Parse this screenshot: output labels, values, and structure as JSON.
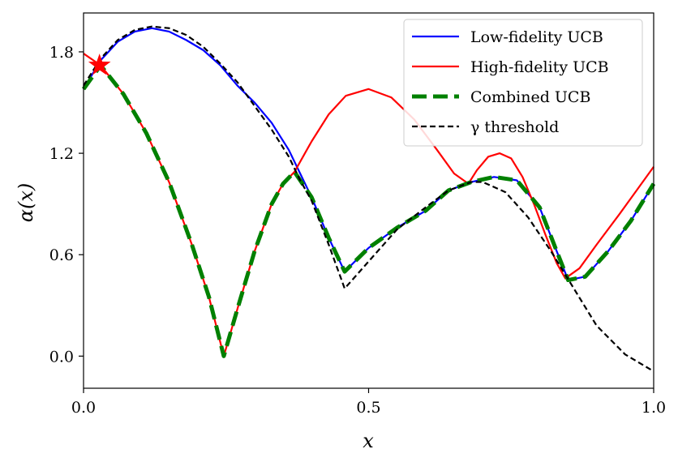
{
  "chart_data": {
    "type": "line",
    "title": "",
    "xlabel": "x",
    "ylabel": "α(x)",
    "xlim": [
      0.0,
      1.0
    ],
    "ylim": [
      -0.19,
      2.03
    ],
    "xticks": [
      0.0,
      0.5,
      1.0
    ],
    "xtick_labels": [
      "0.0",
      "0.5",
      "1.0"
    ],
    "yticks": [
      0.0,
      0.6,
      1.2,
      1.8
    ],
    "ytick_labels": [
      "0.0",
      "0.6",
      "1.2",
      "1.8"
    ],
    "grid": false,
    "legend_position": "top-right",
    "series": [
      {
        "name": "Low-fidelity UCB",
        "color": "#0000ff",
        "style": "solid",
        "x": [
          0.0,
          0.03,
          0.06,
          0.09,
          0.12,
          0.15,
          0.18,
          0.21,
          0.24,
          0.27,
          0.3,
          0.33,
          0.36,
          0.38,
          0.4,
          0.43,
          0.458,
          0.5,
          0.55,
          0.6,
          0.64,
          0.68,
          0.72,
          0.76,
          0.8,
          0.83,
          0.85,
          0.88,
          0.92,
          0.96,
          1.0
        ],
        "y": [
          1.58,
          1.75,
          1.86,
          1.92,
          1.94,
          1.92,
          1.87,
          1.81,
          1.72,
          1.6,
          1.5,
          1.38,
          1.22,
          1.08,
          0.94,
          0.7,
          0.5,
          0.64,
          0.76,
          0.86,
          0.98,
          1.03,
          1.06,
          1.04,
          0.88,
          0.62,
          0.45,
          0.47,
          0.62,
          0.8,
          1.02
        ]
      },
      {
        "name": "High-fidelity UCB",
        "color": "#ff0000",
        "style": "solid",
        "x": [
          0.0,
          0.03,
          0.07,
          0.11,
          0.15,
          0.19,
          0.22,
          0.246,
          0.27,
          0.3,
          0.33,
          0.35,
          0.37,
          0.4,
          0.43,
          0.46,
          0.5,
          0.54,
          0.58,
          0.62,
          0.65,
          0.675,
          0.69,
          0.71,
          0.73,
          0.75,
          0.77,
          0.79,
          0.81,
          0.83,
          0.845,
          0.87,
          0.9,
          0.94,
          0.97,
          1.0
        ],
        "y": [
          1.79,
          1.72,
          1.55,
          1.32,
          1.03,
          0.66,
          0.35,
          0.0,
          0.28,
          0.62,
          0.9,
          1.02,
          1.09,
          1.27,
          1.43,
          1.54,
          1.58,
          1.53,
          1.4,
          1.22,
          1.08,
          1.02,
          1.1,
          1.18,
          1.2,
          1.17,
          1.06,
          0.9,
          0.72,
          0.55,
          0.46,
          0.52,
          0.66,
          0.84,
          0.98,
          1.12
        ]
      },
      {
        "name": "Combined UCB",
        "color": "#008000",
        "style": "dashed-thick",
        "x": [
          0.0,
          0.03,
          0.07,
          0.11,
          0.15,
          0.19,
          0.22,
          0.246,
          0.27,
          0.3,
          0.33,
          0.35,
          0.37,
          0.4,
          0.43,
          0.458,
          0.5,
          0.55,
          0.6,
          0.64,
          0.68,
          0.72,
          0.76,
          0.8,
          0.83,
          0.85,
          0.88,
          0.92,
          0.96,
          1.0
        ],
        "y": [
          1.58,
          1.72,
          1.55,
          1.32,
          1.03,
          0.66,
          0.35,
          0.0,
          0.28,
          0.62,
          0.9,
          1.02,
          1.09,
          0.94,
          0.7,
          0.5,
          0.64,
          0.76,
          0.86,
          0.98,
          1.03,
          1.06,
          1.04,
          0.88,
          0.62,
          0.45,
          0.47,
          0.62,
          0.8,
          1.02
        ]
      },
      {
        "name": "γ threshold",
        "color": "#000000",
        "style": "dashed",
        "x": [
          0.0,
          0.03,
          0.06,
          0.09,
          0.12,
          0.15,
          0.18,
          0.21,
          0.24,
          0.27,
          0.3,
          0.33,
          0.36,
          0.38,
          0.4,
          0.43,
          0.458,
          0.5,
          0.55,
          0.6,
          0.64,
          0.68,
          0.7,
          0.74,
          0.78,
          0.82,
          0.86,
          0.9,
          0.95,
          1.0
        ],
        "y": [
          1.6,
          1.76,
          1.87,
          1.93,
          1.95,
          1.94,
          1.9,
          1.83,
          1.73,
          1.62,
          1.48,
          1.34,
          1.18,
          1.04,
          0.92,
          0.66,
          0.4,
          0.56,
          0.75,
          0.88,
          0.98,
          1.03,
          1.03,
          0.97,
          0.82,
          0.62,
          0.4,
          0.18,
          0.01,
          -0.09
        ]
      }
    ],
    "marker": {
      "x": 0.028,
      "y": 1.72,
      "shape": "star",
      "color": "#ff0000"
    }
  }
}
